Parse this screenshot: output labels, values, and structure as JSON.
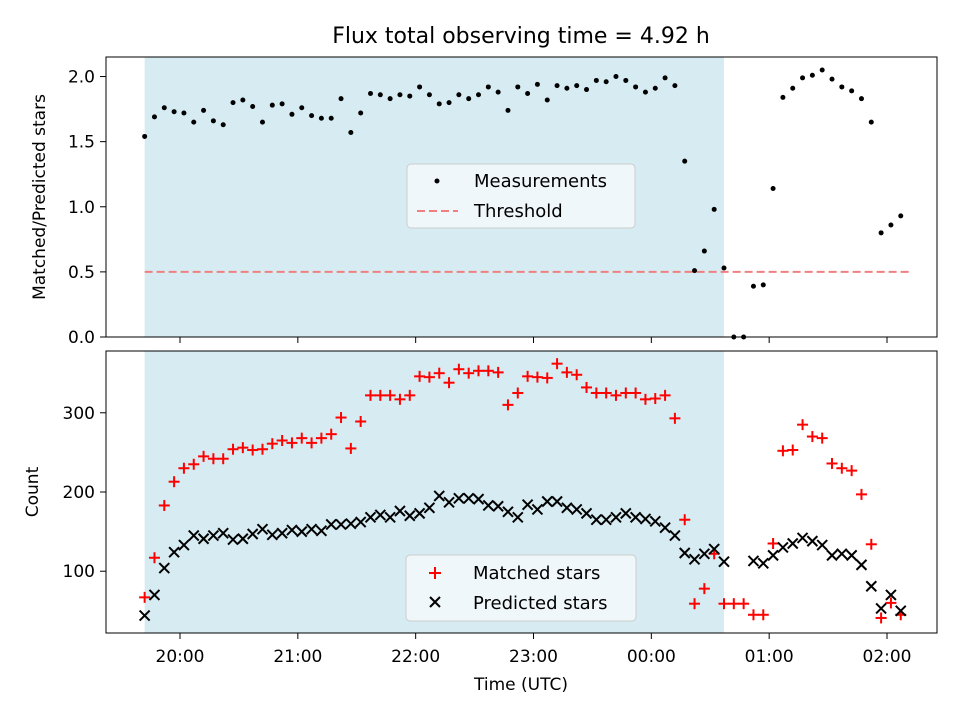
{
  "title": "Flux total observing time = 4.92 h",
  "chart_data": [
    {
      "type": "scatter",
      "ylabel": "Matched/Predicted stars",
      "ylim": [
        0,
        2.15
      ],
      "yticks": [
        0.0,
        0.5,
        1.0,
        1.5,
        2.0
      ],
      "ytick_labels": [
        "0.0",
        "0.5",
        "1.0",
        "1.5",
        "2.0"
      ],
      "legend_position": "center",
      "threshold": 0.5,
      "threshold_x_range": [
        "19:42",
        "02:12"
      ],
      "series": [
        {
          "name": "Measurements",
          "color": "#000000",
          "marker": "dot",
          "x": [
            "19:42",
            "19:47",
            "19:52",
            "19:57",
            "20:02",
            "20:07",
            "20:12",
            "20:17",
            "20:22",
            "20:27",
            "20:32",
            "20:37",
            "20:42",
            "20:47",
            "20:52",
            "20:57",
            "21:02",
            "21:07",
            "21:12",
            "21:17",
            "21:22",
            "21:27",
            "21:32",
            "21:37",
            "21:42",
            "21:47",
            "21:52",
            "21:57",
            "22:02",
            "22:07",
            "22:12",
            "22:17",
            "22:22",
            "22:27",
            "22:32",
            "22:37",
            "22:42",
            "22:47",
            "22:52",
            "22:57",
            "23:02",
            "23:07",
            "23:12",
            "23:17",
            "23:22",
            "23:27",
            "23:32",
            "23:37",
            "23:42",
            "23:47",
            "23:52",
            "23:57",
            "00:02",
            "00:07",
            "00:12",
            "00:17",
            "00:22",
            "00:27",
            "00:32",
            "00:37",
            "00:42",
            "00:47",
            "00:52",
            "00:57",
            "01:02",
            "01:07",
            "01:12",
            "01:17",
            "01:22",
            "01:27",
            "01:32",
            "01:37",
            "01:42",
            "01:47",
            "01:52",
            "01:57",
            "02:02",
            "02:07"
          ],
          "y": [
            1.54,
            1.69,
            1.76,
            1.73,
            1.72,
            1.65,
            1.74,
            1.66,
            1.63,
            1.8,
            1.82,
            1.77,
            1.65,
            1.78,
            1.79,
            1.71,
            1.76,
            1.7,
            1.68,
            1.68,
            1.83,
            1.57,
            1.72,
            1.87,
            1.86,
            1.83,
            1.86,
            1.85,
            1.92,
            1.86,
            1.79,
            1.8,
            1.86,
            1.83,
            1.86,
            1.92,
            1.88,
            1.74,
            1.92,
            1.87,
            1.94,
            1.82,
            1.93,
            1.91,
            1.93,
            1.9,
            1.97,
            1.96,
            2.0,
            1.97,
            1.92,
            1.88,
            1.91,
            1.99,
            1.93,
            1.35,
            0.51,
            0.66,
            0.98,
            0.53,
            0.0,
            0.0,
            0.39,
            0.4,
            1.14,
            1.84,
            1.91,
            1.99,
            2.01,
            2.05,
            1.98,
            1.92,
            1.89,
            1.83,
            1.65,
            0.8,
            0.86,
            0.93
          ]
        },
        {
          "name": "Threshold",
          "color": "#f08080",
          "style": "dashed"
        }
      ],
      "shaded_region": {
        "x_start": "19:42",
        "x_end": "00:37",
        "color": "#add8e6"
      }
    },
    {
      "type": "scatter",
      "xlabel": "Time (UTC)",
      "ylabel": "Count",
      "ylim": [
        22,
        378
      ],
      "yticks": [
        100,
        200,
        300
      ],
      "ytick_labels": [
        "100",
        "200",
        "300"
      ],
      "xticks": [
        "20:00",
        "21:00",
        "22:00",
        "23:00",
        "00:00",
        "01:00",
        "02:00"
      ],
      "xtick_labels": [
        "20:00",
        "21:00",
        "22:00",
        "23:00",
        "00:00",
        "01:00",
        "02:00"
      ],
      "legend_position": "lower center",
      "series": [
        {
          "name": "Matched stars",
          "color": "#ff0000",
          "marker": "plus",
          "x": [
            "19:42",
            "19:47",
            "19:52",
            "19:57",
            "20:02",
            "20:07",
            "20:12",
            "20:17",
            "20:22",
            "20:27",
            "20:32",
            "20:37",
            "20:42",
            "20:47",
            "20:52",
            "20:57",
            "21:02",
            "21:07",
            "21:12",
            "21:17",
            "21:22",
            "21:27",
            "21:32",
            "21:37",
            "21:42",
            "21:47",
            "21:52",
            "21:57",
            "22:02",
            "22:07",
            "22:12",
            "22:17",
            "22:22",
            "22:27",
            "22:32",
            "22:37",
            "22:42",
            "22:47",
            "22:52",
            "22:57",
            "23:02",
            "23:07",
            "23:12",
            "23:17",
            "23:22",
            "23:27",
            "23:32",
            "23:37",
            "23:42",
            "23:47",
            "23:52",
            "23:57",
            "00:02",
            "00:07",
            "00:12",
            "00:17",
            "00:22",
            "00:27",
            "00:32",
            "00:37",
            "00:42",
            "00:47",
            "00:52",
            "00:57",
            "01:02",
            "01:07",
            "01:12",
            "01:17",
            "01:22",
            "01:27",
            "01:32",
            "01:37",
            "01:42",
            "01:47",
            "01:52",
            "01:57",
            "02:02",
            "02:07"
          ],
          "y": [
            67,
            117,
            183,
            213,
            230,
            235,
            245,
            242,
            242,
            254,
            256,
            253,
            254,
            261,
            265,
            262,
            268,
            262,
            268,
            273,
            294,
            255,
            289,
            322,
            322,
            322,
            317,
            322,
            346,
            345,
            350,
            338,
            355,
            350,
            353,
            353,
            351,
            310,
            325,
            346,
            345,
            344,
            362,
            351,
            348,
            332,
            325,
            325,
            322,
            325,
            325,
            317,
            318,
            322,
            293,
            165,
            59,
            78,
            122,
            59,
            59,
            59,
            45,
            45,
            135,
            252,
            253,
            285,
            270,
            268,
            236,
            230,
            227,
            197,
            134,
            41,
            60,
            45
          ]
        },
        {
          "name": "Predicted stars",
          "color": "#000000",
          "marker": "x",
          "x": [
            "19:42",
            "19:47",
            "19:52",
            "19:57",
            "20:02",
            "20:07",
            "20:12",
            "20:17",
            "20:22",
            "20:27",
            "20:32",
            "20:37",
            "20:42",
            "20:47",
            "20:52",
            "20:57",
            "21:02",
            "21:07",
            "21:12",
            "21:17",
            "21:22",
            "21:27",
            "21:32",
            "21:37",
            "21:42",
            "21:47",
            "21:52",
            "21:57",
            "22:02",
            "22:07",
            "22:12",
            "22:17",
            "22:22",
            "22:27",
            "22:32",
            "22:37",
            "22:42",
            "22:47",
            "22:52",
            "22:57",
            "23:02",
            "23:07",
            "23:12",
            "23:17",
            "23:22",
            "23:27",
            "23:32",
            "23:37",
            "23:42",
            "23:47",
            "23:52",
            "23:57",
            "00:02",
            "00:07",
            "00:12",
            "00:17",
            "00:22",
            "00:27",
            "00:32",
            "00:37",
            "00:42",
            "00:47",
            "00:52",
            "00:57",
            "01:02",
            "01:07",
            "01:12",
            "01:17",
            "01:22",
            "01:27",
            "01:32",
            "01:37",
            "01:42",
            "01:47",
            "01:52",
            "01:57",
            "02:02",
            "02:07"
          ],
          "y": [
            44,
            70,
            104,
            124,
            133,
            145,
            141,
            145,
            148,
            140,
            141,
            147,
            153,
            146,
            148,
            152,
            150,
            153,
            151,
            159,
            159,
            160,
            162,
            168,
            171,
            168,
            176,
            170,
            173,
            180,
            195,
            187,
            192,
            192,
            191,
            183,
            182,
            175,
            168,
            184,
            178,
            188,
            188,
            180,
            178,
            173,
            165,
            165,
            168,
            173,
            168,
            166,
            163,
            155,
            145,
            123,
            115,
            122,
            128,
            112,
            null,
            null,
            113,
            110,
            120,
            130,
            135,
            142,
            138,
            133,
            120,
            122,
            120,
            108,
            81,
            53,
            70,
            50
          ]
        }
      ],
      "shaded_region": {
        "x_start": "19:42",
        "x_end": "00:37",
        "color": "#add8e6"
      }
    }
  ]
}
